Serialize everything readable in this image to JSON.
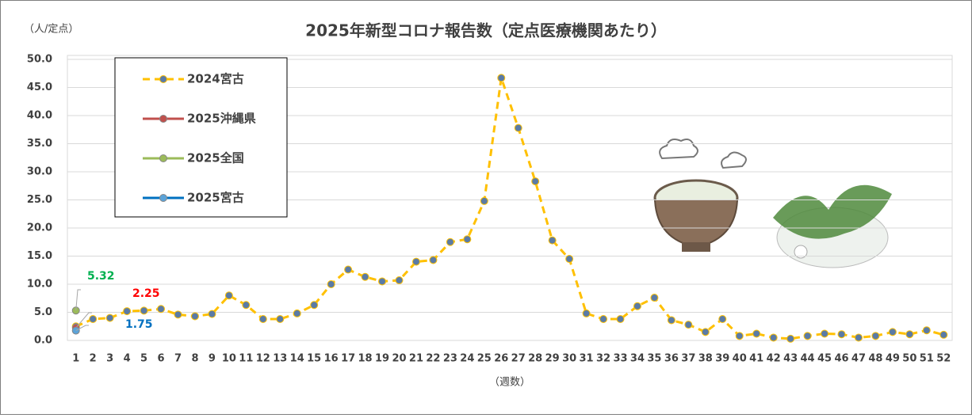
{
  "chart_data": {
    "type": "line",
    "title": "2025年新型コロナ報告数（定点医療機関あたり）",
    "y_unit_label": "（人/定点）",
    "x_label": "（週数）",
    "categories": [
      "1",
      "2",
      "3",
      "4",
      "5",
      "6",
      "7",
      "8",
      "9",
      "10",
      "11",
      "12",
      "13",
      "14",
      "15",
      "16",
      "17",
      "18",
      "19",
      "20",
      "21",
      "22",
      "23",
      "24",
      "25",
      "26",
      "27",
      "28",
      "29",
      "30",
      "31",
      "32",
      "33",
      "34",
      "35",
      "36",
      "37",
      "38",
      "39",
      "40",
      "41",
      "42",
      "43",
      "44",
      "45",
      "46",
      "47",
      "48",
      "49",
      "50",
      "51",
      "52"
    ],
    "series": [
      {
        "name": "2024宮古",
        "color": "#FFC000",
        "marker_color": "#5B7BA5",
        "dashed": true,
        "values": [
          2.5,
          3.8,
          4.0,
          5.2,
          5.3,
          5.6,
          4.6,
          4.3,
          4.7,
          8.0,
          6.3,
          3.8,
          3.8,
          4.8,
          6.3,
          10.0,
          12.6,
          11.3,
          10.5,
          10.7,
          14.0,
          14.3,
          17.5,
          18.0,
          24.8,
          46.7,
          37.8,
          28.3,
          17.8,
          14.5,
          4.8,
          3.8,
          3.8,
          6.1,
          7.6,
          3.6,
          2.8,
          1.5,
          3.8,
          0.8,
          1.2,
          0.5,
          0.3,
          0.8,
          1.2,
          1.1,
          0.5,
          0.8,
          1.5,
          1.1,
          1.8,
          1.0
        ]
      },
      {
        "name": "2025沖縄県",
        "color": "#C0504D",
        "marker_color": "#C0504D",
        "label_color": "#FF0000",
        "values": [
          2.25,
          null,
          null,
          null,
          null,
          null,
          null,
          null,
          null,
          null,
          null,
          null,
          null,
          null,
          null,
          null,
          null,
          null,
          null,
          null,
          null,
          null,
          null,
          null,
          null,
          null,
          null,
          null,
          null,
          null,
          null,
          null,
          null,
          null,
          null,
          null,
          null,
          null,
          null,
          null,
          null,
          null,
          null,
          null,
          null,
          null,
          null,
          null,
          null,
          null,
          null,
          null
        ]
      },
      {
        "name": "2025全国",
        "color": "#9BBB59",
        "marker_color": "#9BBB59",
        "label_color": "#00B050",
        "values": [
          5.32,
          null,
          null,
          null,
          null,
          null,
          null,
          null,
          null,
          null,
          null,
          null,
          null,
          null,
          null,
          null,
          null,
          null,
          null,
          null,
          null,
          null,
          null,
          null,
          null,
          null,
          null,
          null,
          null,
          null,
          null,
          null,
          null,
          null,
          null,
          null,
          null,
          null,
          null,
          null,
          null,
          null,
          null,
          null,
          null,
          null,
          null,
          null,
          null,
          null,
          null,
          null
        ]
      },
      {
        "name": "2025宮古",
        "color": "#0070C0",
        "marker_color": "#5BA3D9",
        "label_color": "#0070C0",
        "values": [
          1.75,
          null,
          null,
          null,
          null,
          null,
          null,
          null,
          null,
          null,
          null,
          null,
          null,
          null,
          null,
          null,
          null,
          null,
          null,
          null,
          null,
          null,
          null,
          null,
          null,
          null,
          null,
          null,
          null,
          null,
          null,
          null,
          null,
          null,
          null,
          null,
          null,
          null,
          null,
          null,
          null,
          null,
          null,
          null,
          null,
          null,
          null,
          null,
          null,
          null,
          null,
          null
        ]
      }
    ],
    "ylim": [
      0,
      50
    ],
    "yticks": [
      {
        "value": 0,
        "label": "0.0"
      },
      {
        "value": 5,
        "label": "5.0"
      },
      {
        "value": 10,
        "label": "10.0"
      },
      {
        "value": 15,
        "label": "15.0"
      },
      {
        "value": 20,
        "label": "20.0"
      },
      {
        "value": 25,
        "label": "25.0"
      },
      {
        "value": 30,
        "label": "30.0"
      },
      {
        "value": 35,
        "label": "35.0"
      },
      {
        "value": 40,
        "label": "40.0"
      },
      {
        "value": 45,
        "label": "45.0"
      },
      {
        "value": 50,
        "label": "50.0"
      }
    ],
    "grid": true
  }
}
